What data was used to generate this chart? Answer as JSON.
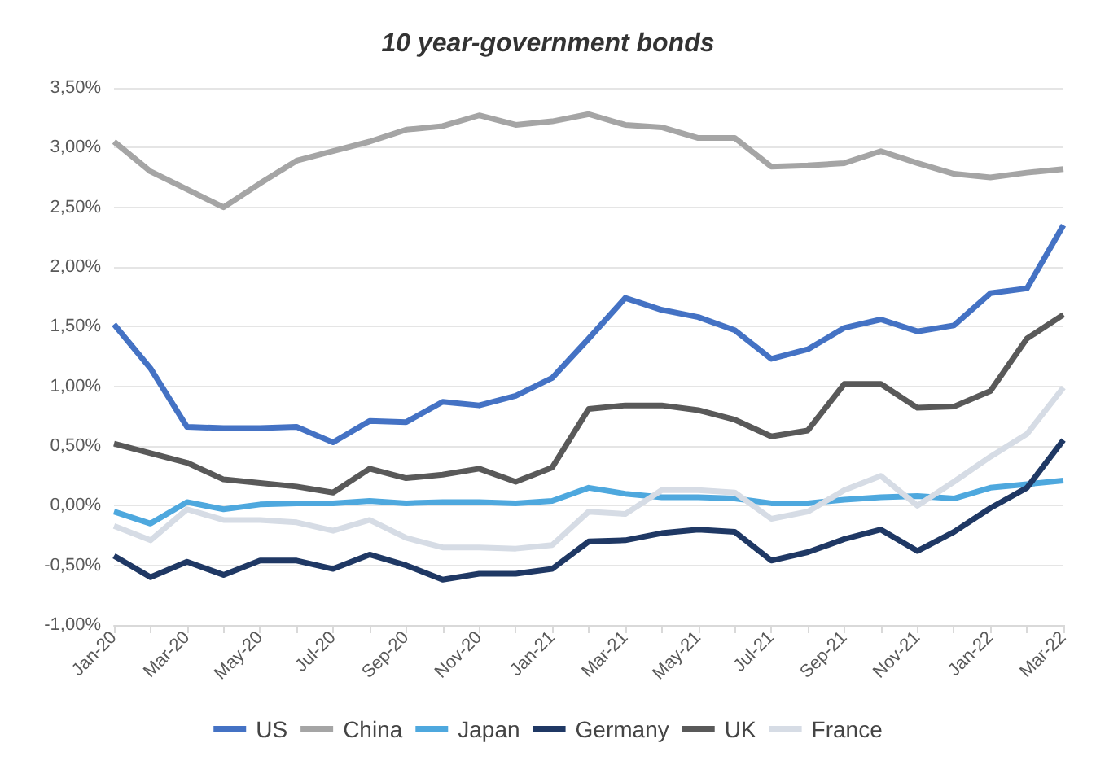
{
  "chart_data": {
    "type": "line",
    "title": "10 year-government bonds",
    "categories": [
      "Jan-20",
      null,
      "Mar-20",
      null,
      "May-20",
      null,
      "Jul-20",
      null,
      "Sep-20",
      null,
      "Nov-20",
      null,
      "Jan-21",
      null,
      "Mar-21",
      null,
      "May-21",
      null,
      "Jul-21",
      null,
      "Sep-21",
      null,
      "Nov-21",
      null,
      "Jan-22",
      null,
      "Mar-22"
    ],
    "series": [
      {
        "name": "US",
        "color": "#4472c4",
        "values": [
          1.52,
          1.15,
          0.66,
          0.65,
          0.65,
          0.66,
          0.53,
          0.71,
          0.7,
          0.87,
          0.84,
          0.92,
          1.07,
          1.4,
          1.74,
          1.64,
          1.58,
          1.47,
          1.23,
          1.31,
          1.49,
          1.56,
          1.46,
          1.51,
          1.78,
          1.82,
          2.35
        ]
      },
      {
        "name": "China",
        "color": "#a5a5a5",
        "values": [
          3.05,
          2.8,
          2.65,
          2.5,
          2.7,
          2.89,
          2.97,
          3.05,
          3.15,
          3.18,
          3.27,
          3.19,
          3.22,
          3.28,
          3.19,
          3.17,
          3.08,
          3.08,
          2.84,
          2.85,
          2.87,
          2.97,
          2.87,
          2.78,
          2.75,
          2.79,
          2.82
        ]
      },
      {
        "name": "Japan",
        "color": "#4ea8de",
        "values": [
          -0.05,
          -0.15,
          0.03,
          -0.03,
          0.01,
          0.02,
          0.02,
          0.04,
          0.02,
          0.03,
          0.03,
          0.02,
          0.04,
          0.15,
          0.1,
          0.07,
          0.07,
          0.06,
          0.02,
          0.02,
          0.05,
          0.07,
          0.08,
          0.06,
          0.15,
          0.18,
          0.21
        ]
      },
      {
        "name": "Germany",
        "color": "#1f3864",
        "values": [
          -0.42,
          -0.6,
          -0.47,
          -0.58,
          -0.46,
          -0.46,
          -0.53,
          -0.41,
          -0.5,
          -0.62,
          -0.57,
          -0.57,
          -0.53,
          -0.3,
          -0.29,
          -0.23,
          -0.2,
          -0.22,
          -0.46,
          -0.39,
          -0.28,
          -0.2,
          -0.38,
          -0.22,
          -0.02,
          0.15,
          0.55
        ]
      },
      {
        "name": "UK",
        "color": "#595959",
        "values": [
          0.52,
          0.44,
          0.36,
          0.22,
          0.19,
          0.16,
          0.11,
          0.31,
          0.23,
          0.26,
          0.31,
          0.2,
          0.32,
          0.81,
          0.84,
          0.84,
          0.8,
          0.72,
          0.58,
          0.63,
          1.02,
          1.02,
          0.82,
          0.83,
          0.96,
          1.4,
          1.6
        ]
      },
      {
        "name": "France",
        "color": "#d6dce5",
        "values": [
          -0.17,
          -0.29,
          -0.03,
          -0.12,
          -0.12,
          -0.14,
          -0.21,
          -0.12,
          -0.27,
          -0.35,
          -0.35,
          -0.36,
          -0.33,
          -0.05,
          -0.07,
          0.13,
          0.13,
          0.11,
          -0.11,
          -0.05,
          0.13,
          0.25,
          0.0,
          0.2,
          0.41,
          0.6,
          0.99
        ]
      }
    ],
    "ylim": [
      -1,
      3.5
    ],
    "yticks": [
      {
        "value": -1,
        "label": "-1,00%"
      },
      {
        "value": -0.5,
        "label": "-0,50%"
      },
      {
        "value": 0,
        "label": "0,00%"
      },
      {
        "value": 0.5,
        "label": "0,50%"
      },
      {
        "value": 1,
        "label": "1,00%"
      },
      {
        "value": 1.5,
        "label": "1,50%"
      },
      {
        "value": 2,
        "label": "2,00%"
      },
      {
        "value": 2.5,
        "label": "2,50%"
      },
      {
        "value": 3,
        "label": "3,00%"
      },
      {
        "value": 3.5,
        "label": "3,50%"
      }
    ],
    "grid": "y",
    "legend": "bottom",
    "marker": "none",
    "line_style": "solid"
  }
}
